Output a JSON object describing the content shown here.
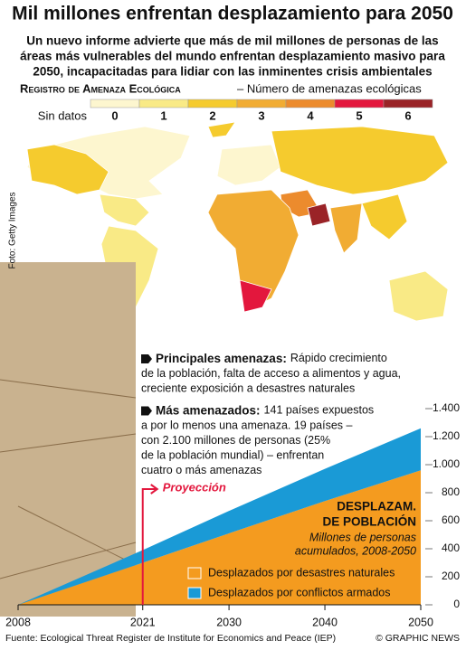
{
  "header": {
    "title": "Mil millones enfrentan desplazamiento para 2050",
    "subtitle": [
      "Un nuevo informe advierte que más de mil millones de personas de las",
      "áreas más vulnerables del mundo enfrentan desplazamiento masivo para",
      "2050, incapacitadas para lidiar con las inminentes crisis ambientales"
    ]
  },
  "map_legend": {
    "title": "Registro de Amenaza Ecológica",
    "subtitle": "– Número de amenazas ecológicas",
    "items": [
      {
        "label": "Sin datos",
        "color": "#ffffff"
      },
      {
        "label": "0",
        "color": "#fdf6cf"
      },
      {
        "label": "1",
        "color": "#f9ea86"
      },
      {
        "label": "2",
        "color": "#f5cb2e"
      },
      {
        "label": "3",
        "color": "#f1ac33"
      },
      {
        "label": "4",
        "color": "#ec8b2d"
      },
      {
        "label": "5",
        "color": "#e3173d"
      },
      {
        "label": "6",
        "color": "#9a2327"
      }
    ]
  },
  "notes": [
    {
      "head": "Principales amenazas:",
      "lines": [
        "Rápido crecimiento",
        "de la población, falta de acceso a alimentos y agua,",
        "creciente exposición a desastres naturales"
      ]
    },
    {
      "head": "Más amenazados:",
      "lines": [
        "141 países expuestos",
        "a por lo menos una amenaza. 19 países –",
        "con 2.100 millones de personas (25%",
        "de la población mundial) – enfrentan",
        "cuatro o más amenazas"
      ]
    }
  ],
  "photo_credit": "Foto: Getty Images",
  "chart_data": {
    "type": "area",
    "stacked": true,
    "title": [
      "Desplazam.",
      "de población"
    ],
    "subtitle": [
      "Millones de personas",
      "acumulados, 2008-2050"
    ],
    "x": [
      2008,
      2021,
      2030,
      2040,
      2050
    ],
    "series": [
      {
        "name": "Desplazados por desastres naturales",
        "color": "#f49b1f",
        "values": [
          0,
          300,
          510,
          740,
          960
        ]
      },
      {
        "name": "Desplazados por conflictos armados",
        "color": "#1a9ad6",
        "values": [
          0,
          90,
          160,
          230,
          300
        ]
      }
    ],
    "xlim": [
      2008,
      2050
    ],
    "xticks": [
      2008,
      2021,
      2030,
      2040,
      2050
    ],
    "ylim": [
      0,
      1400
    ],
    "yticks": [
      0,
      200,
      400,
      600,
      800,
      {
        "value": 1000,
        "label": "1.000"
      },
      {
        "value": 1200,
        "label": "1.200"
      },
      {
        "value": 1400,
        "label": "1.400"
      }
    ],
    "annotation": {
      "text": "Proyección",
      "x": 2021
    }
  },
  "footer": {
    "source": "Fuente: Ecological Threat Register de Institute for Economics and Peace (IEP)",
    "credit": "© GRAPHIC NEWS"
  }
}
